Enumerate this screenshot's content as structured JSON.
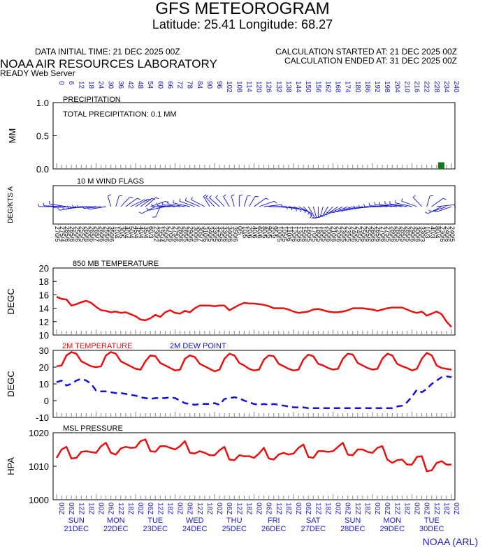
{
  "header": {
    "title": "GFS METEOROGRAM",
    "subtitle": "Latitude: 25.41 Longitude:  68.27",
    "init_time": "DATA INITIAL TIME: 21 DEC 2025 00Z",
    "calc_started": "CALCULATION STARTED AT: 21 DEC 2025 00Z",
    "calc_ended": "CALCULATION ENDED AT: 31 DEC 2025 00Z",
    "lab": "NOAA AIR RESOURCES LABORATORY",
    "server": "READY Web Server"
  },
  "footer": "NOAA (ARL)",
  "colors": {
    "temp": "#e81010",
    "dew": "#1010d8",
    "precip": "#0d7a1a",
    "label_blue": "#1a1ac8"
  },
  "chart_data": [
    {
      "type": "bar",
      "panel": "precipitation",
      "title": "PRECIPITATION",
      "annotation": "TOTAL PRECIPITATION:   0.1 MM",
      "ylabel": "MM",
      "ylim": [
        0,
        1
      ],
      "yticks": [
        "0.0",
        "0.5",
        "1.0"
      ],
      "x_hours_step": 3,
      "x_hours_range": [
        0,
        240
      ],
      "forecast_hour_labels": [
        "0",
        "6",
        "12",
        "18",
        "24",
        "30",
        "36",
        "42",
        "48",
        "54",
        "60",
        "66",
        "72",
        "78",
        "84",
        "90",
        "96",
        "102",
        "108",
        "114",
        "120",
        "126",
        "132",
        "138",
        "144",
        "150",
        "156",
        "162",
        "168",
        "174",
        "180",
        "186",
        "192",
        "198",
        "204",
        "210",
        "216",
        "222",
        "228",
        "234",
        "240"
      ],
      "values": [
        0,
        0,
        0,
        0,
        0,
        0,
        0,
        0,
        0,
        0,
        0,
        0,
        0,
        0,
        0,
        0,
        0,
        0,
        0,
        0,
        0,
        0,
        0,
        0,
        0,
        0,
        0,
        0,
        0,
        0,
        0,
        0,
        0,
        0,
        0,
        0,
        0,
        0,
        0,
        0,
        0,
        0,
        0,
        0,
        0,
        0,
        0,
        0,
        0,
        0,
        0,
        0,
        0,
        0,
        0,
        0,
        0,
        0,
        0,
        0,
        0,
        0,
        0,
        0,
        0,
        0,
        0,
        0,
        0,
        0,
        0,
        0,
        0,
        0,
        0,
        0,
        0,
        0,
        0.1,
        0
      ]
    },
    {
      "type": "wind_barbs",
      "panel": "wind",
      "title": "10 M  WIND FLAGS",
      "ylabel": "DEG/KTS  A",
      "directions": [
        270,
        275,
        285,
        265,
        250,
        255,
        260,
        265,
        265,
        260,
        255,
        350,
        10,
        30,
        40,
        50,
        45,
        40,
        35,
        60,
        230,
        195,
        250,
        270,
        275,
        280,
        285,
        290,
        300,
        305,
        310,
        340,
        330,
        325,
        330,
        340,
        350,
        0,
        10,
        20,
        40,
        60,
        80,
        90,
        95,
        100,
        105,
        110,
        120,
        130,
        150,
        160,
        170,
        180,
        190,
        200,
        210,
        220,
        230,
        235,
        240,
        245,
        250,
        255,
        260,
        265,
        270,
        275,
        280,
        280,
        285,
        285,
        290,
        300,
        330,
        10,
        40,
        80,
        230,
        240,
        240
      ],
      "speeds": [
        5,
        4,
        6,
        6,
        6,
        5,
        6,
        6,
        7,
        6,
        6,
        6,
        4,
        5,
        4,
        4,
        4,
        4,
        4,
        3,
        2,
        4,
        5,
        6,
        6,
        6,
        5,
        6,
        6,
        7,
        6,
        5,
        5,
        6,
        6,
        6,
        6,
        5,
        5,
        6,
        6,
        6,
        5,
        5,
        5,
        5,
        5,
        6,
        6,
        6,
        6,
        5,
        5,
        5,
        5,
        6,
        6,
        6,
        5,
        5,
        6,
        5,
        6,
        6,
        6,
        6,
        6,
        5,
        6,
        5,
        5,
        5,
        6,
        6,
        3,
        3,
        3,
        4,
        6,
        6,
        5
      ]
    },
    {
      "type": "line",
      "panel": "temp850",
      "title": "850 MB  TEMPERATURE",
      "ylabel": "DEGC",
      "ylim": [
        10,
        20
      ],
      "yticks": [
        "10",
        "12",
        "14",
        "16",
        "18",
        "20"
      ],
      "series": [
        {
          "color": "#e81010",
          "values": [
            15.7,
            15.4,
            15.3,
            14.4,
            14.6,
            14.9,
            15.1,
            14.8,
            14.2,
            13.7,
            13.6,
            13.4,
            13.5,
            13.3,
            13.4,
            13.1,
            12.8,
            12.3,
            12.2,
            12.5,
            13.0,
            12.7,
            13.4,
            13.7,
            13.3,
            13.2,
            13.6,
            13.4,
            14.0,
            14.4,
            14.4,
            14.4,
            14.3,
            14.4,
            14.4,
            13.7,
            14.1,
            14.5,
            14.8,
            14.7,
            14.7,
            14.6,
            14.5,
            14.3,
            14.0,
            14.0,
            14.0,
            13.8,
            13.5,
            13.3,
            13.4,
            13.5,
            13.8,
            13.9,
            13.7,
            13.5,
            13.4,
            13.4,
            13.5,
            13.7,
            14.0,
            14.0,
            14.0,
            13.9,
            13.8,
            13.6,
            13.8,
            14.0,
            14.1,
            14.1,
            14.1,
            13.8,
            13.5,
            13.3,
            13.5,
            12.9,
            13.2,
            13.5,
            13.1,
            12.0,
            11.2
          ]
        }
      ]
    },
    {
      "type": "line",
      "panel": "surface",
      "ylabel": "DEGC",
      "ylim": [
        -10,
        30
      ],
      "yticks": [
        "-10",
        "0",
        "10",
        "20",
        "30"
      ],
      "series": [
        {
          "name": "2M TEMPERATURE",
          "color": "#e81010",
          "dash": false,
          "values": [
            20.5,
            21.0,
            27.0,
            29.0,
            28.0,
            23.5,
            22.0,
            20.5,
            20.0,
            20.5,
            27.0,
            29.0,
            28.0,
            23.5,
            22.0,
            20.5,
            19.0,
            18.5,
            23.5,
            27.0,
            26.5,
            22.5,
            21.0,
            19.5,
            18.0,
            18.5,
            25.0,
            27.0,
            26.0,
            22.0,
            20.5,
            19.0,
            17.5,
            18.5,
            25.0,
            28.0,
            27.0,
            22.5,
            21.0,
            19.0,
            18.0,
            18.5,
            24.5,
            27.0,
            26.5,
            22.0,
            20.5,
            19.0,
            18.0,
            18.5,
            24.5,
            27.5,
            26.5,
            22.0,
            21.0,
            19.5,
            18.5,
            19.0,
            25.0,
            28.0,
            27.5,
            22.5,
            21.0,
            19.5,
            18.5,
            19.0,
            25.0,
            28.0,
            27.0,
            22.0,
            20.5,
            19.5,
            18.0,
            19.0,
            25.0,
            28.5,
            27.0,
            21.0,
            19.5,
            19.0,
            18.5
          ]
        },
        {
          "name": "2M  DEW POINT",
          "color": "#1010d8",
          "dash": true,
          "values": [
            11.0,
            12.0,
            9.0,
            10.0,
            12.0,
            13.0,
            12.0,
            10.0,
            6.0,
            5.5,
            5.5,
            5.0,
            4.5,
            4.5,
            4.0,
            3.5,
            3.0,
            2.0,
            1.5,
            1.0,
            1.5,
            1.5,
            1.5,
            2.0,
            1.5,
            0.0,
            -1.5,
            -2.0,
            -2.5,
            -2.0,
            -2.0,
            -2.0,
            -1.5,
            -2.5,
            1.0,
            1.5,
            2.0,
            1.5,
            0.0,
            -1.0,
            -2.0,
            -2.5,
            -2.0,
            -2.5,
            -2.0,
            -2.5,
            -3.0,
            -3.5,
            -4.0,
            -4.0,
            -4.0,
            -4.5,
            -4.5,
            -4.5,
            -4.5,
            -4.5,
            -4.5,
            -4.5,
            -4.5,
            -4.5,
            -4.5,
            -4.5,
            -4.5,
            -4.5,
            -4.5,
            -4.5,
            -4.5,
            -4.5,
            -4.5,
            -3.5,
            -3.0,
            -1.0,
            2.5,
            6.5,
            5.0,
            7.0,
            10.0,
            12.0,
            14.0,
            14.5,
            14.0
          ]
        }
      ]
    },
    {
      "type": "line",
      "panel": "pressure",
      "title": "MSL PRESSURE",
      "ylabel": "HPA",
      "ylim": [
        1000,
        1020
      ],
      "yticks": [
        "1000",
        "1010",
        "1020"
      ],
      "series": [
        {
          "color": "#e81010",
          "values": [
            1012.5,
            1015.0,
            1015.8,
            1012.3,
            1012.5,
            1014.3,
            1014.5,
            1014.2,
            1014.0,
            1016.0,
            1017.0,
            1014.0,
            1013.5,
            1015.3,
            1015.8,
            1015.5,
            1015.6,
            1017.5,
            1018.0,
            1014.5,
            1014.3,
            1016.0,
            1016.0,
            1015.5,
            1015.0,
            1016.0,
            1017.5,
            1014.0,
            1013.8,
            1014.5,
            1014.0,
            1013.3,
            1013.3,
            1014.8,
            1015.8,
            1012.0,
            1011.8,
            1013.3,
            1013.0,
            1013.0,
            1012.5,
            1013.8,
            1015.5,
            1012.3,
            1012.0,
            1013.5,
            1014.0,
            1013.5,
            1013.8,
            1015.5,
            1016.5,
            1012.8,
            1012.5,
            1014.5,
            1014.5,
            1014.3,
            1014.5,
            1015.8,
            1017.0,
            1013.5,
            1013.3,
            1015.0,
            1015.0,
            1014.3,
            1014.0,
            1015.5,
            1016.0,
            1012.0,
            1011.0,
            1011.8,
            1012.0,
            1010.5,
            1010.5,
            1012.8,
            1013.0,
            1008.5,
            1008.8,
            1011.0,
            1011.5,
            1010.5,
            1010.5
          ]
        }
      ]
    }
  ],
  "time_axis": {
    "hour_labels": [
      "00Z",
      "06Z",
      "12Z",
      "18Z",
      "00Z",
      "06Z",
      "12Z",
      "18Z",
      "00Z",
      "06Z",
      "12Z",
      "18Z",
      "00Z",
      "06Z",
      "12Z",
      "18Z",
      "00Z",
      "06Z",
      "12Z",
      "18Z",
      "00Z",
      "06Z",
      "12Z",
      "18Z",
      "00Z",
      "06Z",
      "12Z",
      "18Z",
      "00Z",
      "06Z",
      "12Z",
      "18Z",
      "00Z",
      "06Z",
      "12Z",
      "18Z",
      "00Z",
      "06Z",
      "12Z",
      "18Z",
      "00Z"
    ],
    "days": [
      {
        "dow": "SUN",
        "date": "21DEC"
      },
      {
        "dow": "MON",
        "date": "22DEC"
      },
      {
        "dow": "TUE",
        "date": "23DEC"
      },
      {
        "dow": "WED",
        "date": "24DEC"
      },
      {
        "dow": "THU",
        "date": "25DEC"
      },
      {
        "dow": "FRI",
        "date": "26DEC"
      },
      {
        "dow": "SAT",
        "date": "27DEC"
      },
      {
        "dow": "SUN",
        "date": "28DEC"
      },
      {
        "dow": "MON",
        "date": "29DEC"
      },
      {
        "dow": "TUE",
        "date": "30DEC"
      }
    ]
  }
}
